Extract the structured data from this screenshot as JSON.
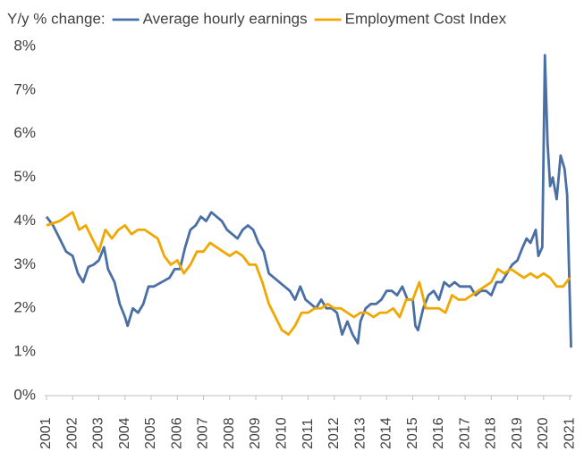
{
  "chart_data": {
    "type": "line",
    "legend_title": "Y/y % change:",
    "xlim": [
      2001,
      2021.1
    ],
    "xticks": [
      2001,
      2002,
      2003,
      2004,
      2005,
      2006,
      2007,
      2008,
      2009,
      2010,
      2011,
      2012,
      2013,
      2014,
      2015,
      2016,
      2017,
      2018,
      2019,
      2020,
      2021
    ],
    "ylim": [
      0,
      8
    ],
    "yticks": [
      {
        "value": 0,
        "label": "0%"
      },
      {
        "value": 1,
        "label": "1%"
      },
      {
        "value": 2,
        "label": "2%"
      },
      {
        "value": 3,
        "label": "3%"
      },
      {
        "value": 4,
        "label": "4%"
      },
      {
        "value": 5,
        "label": "5%"
      },
      {
        "value": 6,
        "label": "6%"
      },
      {
        "value": 7,
        "label": "7%"
      },
      {
        "value": 8,
        "label": "8%"
      }
    ],
    "grid": false,
    "legend": "top",
    "series": [
      {
        "name": "Average hourly earnings",
        "color": "#4a6fa5",
        "x": [
          2001.0,
          2001.25,
          2001.5,
          2001.75,
          2002.0,
          2002.2,
          2002.4,
          2002.6,
          2002.8,
          2003.0,
          2003.2,
          2003.35,
          2003.6,
          2003.8,
          2004.0,
          2004.1,
          2004.3,
          2004.5,
          2004.7,
          2004.9,
          2005.1,
          2005.4,
          2005.7,
          2005.9,
          2006.1,
          2006.3,
          2006.5,
          2006.7,
          2006.9,
          2007.1,
          2007.3,
          2007.5,
          2007.7,
          2007.9,
          2008.1,
          2008.3,
          2008.5,
          2008.7,
          2008.9,
          2009.1,
          2009.3,
          2009.5,
          2009.7,
          2009.9,
          2010.1,
          2010.3,
          2010.5,
          2010.7,
          2010.9,
          2011.1,
          2011.3,
          2011.5,
          2011.7,
          2011.9,
          2012.1,
          2012.3,
          2012.5,
          2012.7,
          2012.9,
          2013.0,
          2013.2,
          2013.4,
          2013.6,
          2013.8,
          2014.0,
          2014.2,
          2014.4,
          2014.6,
          2014.8,
          2015.0,
          2015.1,
          2015.2,
          2015.4,
          2015.6,
          2015.8,
          2016.0,
          2016.2,
          2016.4,
          2016.6,
          2016.8,
          2017.0,
          2017.2,
          2017.4,
          2017.6,
          2017.8,
          2018.0,
          2018.2,
          2018.4,
          2018.6,
          2018.8,
          2019.0,
          2019.2,
          2019.35,
          2019.5,
          2019.7,
          2019.8,
          2019.95,
          2020.05,
          2020.15,
          2020.25,
          2020.35,
          2020.5,
          2020.65,
          2020.8,
          2020.9,
          2021.05
        ],
        "values": [
          4.1,
          3.9,
          3.6,
          3.3,
          3.2,
          2.8,
          2.6,
          2.95,
          3.0,
          3.1,
          3.4,
          2.9,
          2.6,
          2.1,
          1.8,
          1.6,
          2.0,
          1.9,
          2.1,
          2.5,
          2.5,
          2.6,
          2.7,
          2.9,
          2.9,
          3.4,
          3.8,
          3.9,
          4.1,
          4.0,
          4.2,
          4.1,
          4.0,
          3.8,
          3.7,
          3.6,
          3.8,
          3.9,
          3.8,
          3.5,
          3.3,
          2.8,
          2.7,
          2.6,
          2.5,
          2.4,
          2.2,
          2.5,
          2.2,
          2.1,
          2.0,
          2.2,
          2.0,
          2.0,
          1.9,
          1.4,
          1.7,
          1.4,
          1.2,
          1.7,
          2.0,
          2.1,
          2.1,
          2.2,
          2.4,
          2.4,
          2.3,
          2.5,
          2.2,
          2.2,
          1.6,
          1.5,
          2.0,
          2.3,
          2.4,
          2.2,
          2.6,
          2.5,
          2.6,
          2.5,
          2.5,
          2.5,
          2.3,
          2.4,
          2.4,
          2.3,
          2.6,
          2.6,
          2.8,
          3.0,
          3.1,
          3.4,
          3.6,
          3.5,
          3.8,
          3.2,
          3.4,
          7.8,
          5.8,
          4.8,
          5.0,
          4.5,
          5.5,
          5.2,
          4.6,
          1.1
        ]
      },
      {
        "name": "Employment Cost Index",
        "color": "#f0a800",
        "x": [
          2001.0,
          2001.5,
          2002.0,
          2002.25,
          2002.5,
          2003.0,
          2003.25,
          2003.5,
          2003.75,
          2004.0,
          2004.25,
          2004.5,
          2004.75,
          2005.25,
          2005.5,
          2005.75,
          2006.0,
          2006.25,
          2006.5,
          2006.75,
          2007.0,
          2007.25,
          2007.5,
          2007.75,
          2008.0,
          2008.25,
          2008.5,
          2008.75,
          2009.0,
          2009.25,
          2009.5,
          2009.75,
          2010.0,
          2010.25,
          2010.5,
          2010.75,
          2011.0,
          2011.25,
          2011.5,
          2011.75,
          2012.0,
          2012.25,
          2012.5,
          2012.75,
          2013.0,
          2013.25,
          2013.5,
          2013.75,
          2014.0,
          2014.25,
          2014.5,
          2014.75,
          2015.0,
          2015.25,
          2015.5,
          2015.75,
          2016.0,
          2016.25,
          2016.5,
          2016.75,
          2017.0,
          2017.25,
          2017.5,
          2017.75,
          2018.0,
          2018.25,
          2018.5,
          2018.75,
          2019.0,
          2019.25,
          2019.5,
          2019.75,
          2020.0,
          2020.25,
          2020.5,
          2020.75,
          2021.0
        ],
        "values": [
          3.9,
          4.0,
          4.2,
          3.8,
          3.9,
          3.3,
          3.8,
          3.6,
          3.8,
          3.9,
          3.7,
          3.8,
          3.8,
          3.6,
          3.2,
          3.0,
          3.1,
          2.8,
          3.0,
          3.3,
          3.3,
          3.5,
          3.4,
          3.3,
          3.2,
          3.3,
          3.2,
          3.0,
          3.0,
          2.6,
          2.1,
          1.8,
          1.5,
          1.4,
          1.6,
          1.9,
          1.9,
          2.0,
          2.0,
          2.1,
          2.0,
          2.0,
          1.9,
          1.8,
          1.9,
          1.9,
          1.8,
          1.9,
          1.9,
          2.0,
          1.8,
          2.2,
          2.2,
          2.6,
          2.0,
          2.0,
          2.0,
          1.9,
          2.3,
          2.2,
          2.2,
          2.3,
          2.4,
          2.5,
          2.6,
          2.9,
          2.8,
          2.9,
          2.8,
          2.7,
          2.8,
          2.7,
          2.8,
          2.7,
          2.5,
          2.5,
          2.7
        ]
      }
    ]
  }
}
